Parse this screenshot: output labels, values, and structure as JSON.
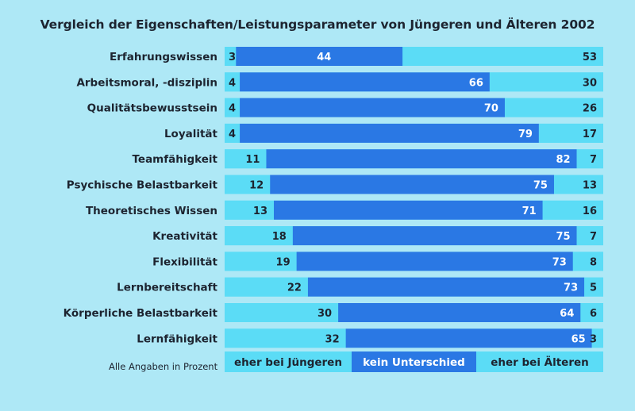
{
  "chart_data": {
    "type": "bar",
    "stacked": true,
    "orientation": "horizontal",
    "title": "Vergleich der Eigenschaften/Leistungsparameter von Jüngeren und Älteren 2002",
    "categories": [
      "Erfahrungswissen",
      "Arbeitsmoral, -disziplin",
      "Qualitätsbewusstsein",
      "Loyalität",
      "Teamfähigkeit",
      "Psychische Belastbarkeit",
      "Theoretisches Wissen",
      "Kreativität",
      "Flexibilität",
      "Lernbereitschaft",
      "Körperliche Belastbarkeit",
      "Lernfähigkeit"
    ],
    "series": [
      {
        "name": "eher bei Jüngeren",
        "values": [
          3,
          4,
          4,
          4,
          11,
          12,
          13,
          18,
          19,
          22,
          30,
          32
        ]
      },
      {
        "name": "kein Unterschied",
        "values": [
          44,
          66,
          70,
          79,
          82,
          75,
          71,
          75,
          73,
          73,
          64,
          65
        ]
      },
      {
        "name": "eher bei Älteren",
        "values": [
          53,
          30,
          26,
          17,
          7,
          13,
          16,
          7,
          8,
          5,
          6,
          3
        ]
      }
    ],
    "xlim": [
      0,
      100
    ],
    "legend": "bottom",
    "footnote": "Alle Angaben in Prozent",
    "colors": {
      "background": "#aee8f6",
      "light_bar": "#5bdcf6",
      "dark_bar": "#2a78e4",
      "dark_text": "#1d2430",
      "light_text": "#ffffff"
    }
  }
}
